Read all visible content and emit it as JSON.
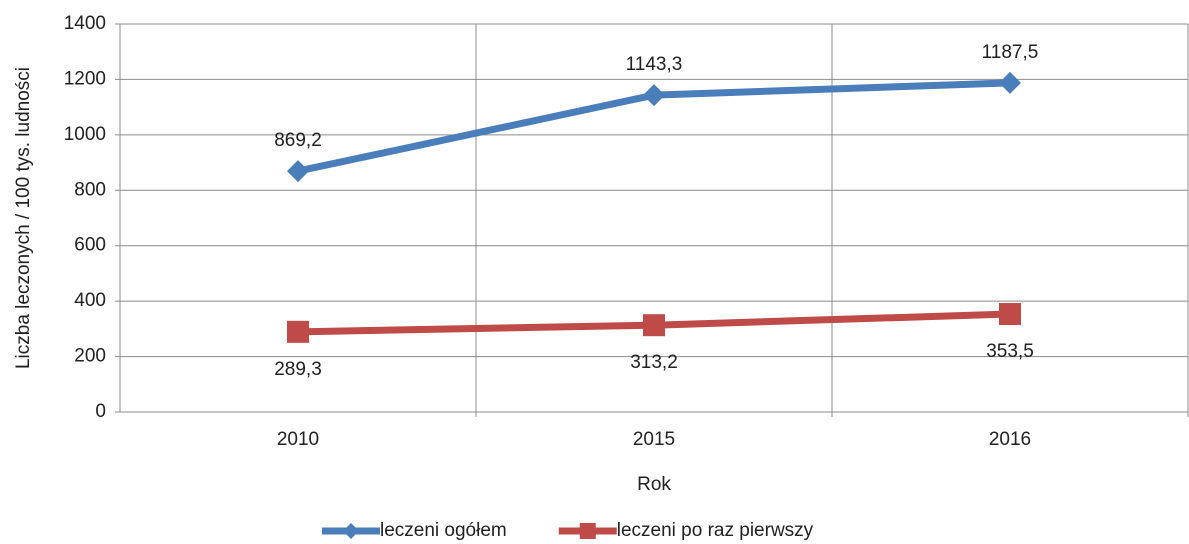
{
  "chart_data": {
    "type": "line",
    "x_label": "Rok",
    "y_label": "Liczba leczonych / 100 tys. ludności",
    "categories": [
      "2010",
      "2015",
      "2016"
    ],
    "series": [
      {
        "name": "leczeni ogółem",
        "color": "#4a7ebb",
        "marker": "diamond",
        "values": [
          869.2,
          1143.3,
          1187.5
        ],
        "value_labels": [
          "869,2",
          "1143,3",
          "1187,5"
        ]
      },
      {
        "name": "leczeni po raz pierwszy",
        "color": "#be4b48",
        "marker": "square",
        "values": [
          289.3,
          313.2,
          353.5
        ],
        "value_labels": [
          "289,3",
          "313,2",
          "353,5"
        ]
      }
    ],
    "ylim": [
      0,
      1400
    ],
    "yticks": [
      0,
      200,
      400,
      600,
      800,
      1000,
      1200,
      1400
    ],
    "grid": true,
    "legend": "bottom"
  }
}
